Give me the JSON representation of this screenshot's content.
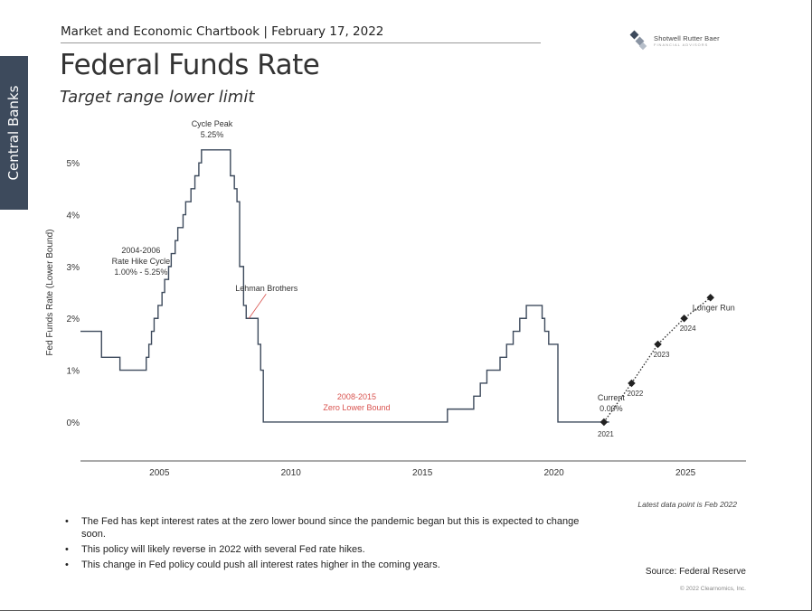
{
  "side_tab": {
    "label": "Central Banks"
  },
  "header": {
    "chartbook": "Market and Economic Chartbook | February 17, 2022",
    "logo_text": "Shotwell Rutter Baer",
    "logo_subtext": "FINANCIAL  ADVISORS"
  },
  "title": "Federal Funds Rate",
  "subtitle": "Target range lower limit",
  "chart_data": {
    "type": "line",
    "ylabel": "Fed Funds Rate (Lower Bound)",
    "xlabel": "",
    "xlim": [
      2002.0,
      2027.3
    ],
    "ylim": [
      -0.75,
      5.7
    ],
    "x_ticks": [
      2005,
      2010,
      2015,
      2020,
      2025
    ],
    "y_ticks": [
      {
        "value": 0,
        "label": "0%"
      },
      {
        "value": 1,
        "label": "1%"
      },
      {
        "value": 2,
        "label": "2%"
      },
      {
        "value": 3,
        "label": "3%"
      },
      {
        "value": 4,
        "label": "4%"
      },
      {
        "value": 5,
        "label": "5%"
      }
    ],
    "grid": false,
    "series": [
      {
        "style": "step",
        "color": "#3d4a5c",
        "points": [
          [
            2002.0,
            1.75
          ],
          [
            2002.8,
            1.25
          ],
          [
            2003.5,
            1.0
          ],
          [
            2004.5,
            1.25
          ],
          [
            2004.6,
            1.5
          ],
          [
            2004.7,
            1.75
          ],
          [
            2004.8,
            2.0
          ],
          [
            2004.95,
            2.25
          ],
          [
            2005.1,
            2.5
          ],
          [
            2005.2,
            2.75
          ],
          [
            2005.35,
            3.0
          ],
          [
            2005.45,
            3.25
          ],
          [
            2005.6,
            3.5
          ],
          [
            2005.7,
            3.75
          ],
          [
            2005.9,
            4.0
          ],
          [
            2006.0,
            4.25
          ],
          [
            2006.2,
            4.5
          ],
          [
            2006.35,
            4.75
          ],
          [
            2006.5,
            5.0
          ],
          [
            2006.6,
            5.25
          ],
          [
            2007.7,
            4.75
          ],
          [
            2007.85,
            4.5
          ],
          [
            2007.95,
            4.25
          ],
          [
            2008.05,
            3.0
          ],
          [
            2008.2,
            2.25
          ],
          [
            2008.3,
            2.0
          ],
          [
            2008.75,
            1.5
          ],
          [
            2008.85,
            1.0
          ],
          [
            2008.95,
            0.0
          ],
          [
            2015.95,
            0.25
          ],
          [
            2016.95,
            0.5
          ],
          [
            2017.2,
            0.75
          ],
          [
            2017.45,
            1.0
          ],
          [
            2017.95,
            1.25
          ],
          [
            2018.2,
            1.5
          ],
          [
            2018.45,
            1.75
          ],
          [
            2018.7,
            2.0
          ],
          [
            2018.95,
            2.25
          ],
          [
            2019.55,
            2.0
          ],
          [
            2019.65,
            1.75
          ],
          [
            2019.8,
            1.5
          ],
          [
            2020.15,
            0.0
          ],
          [
            2022.1,
            0.0
          ]
        ]
      },
      {
        "style": "dotted-projection",
        "color": "#333333",
        "points": [
          [
            2021.9,
            0.0,
            "2021"
          ],
          [
            2022.95,
            0.75,
            "2022"
          ],
          [
            2023.95,
            1.5,
            "2023"
          ],
          [
            2024.95,
            2.0,
            "2024"
          ],
          [
            2025.95,
            2.4,
            ""
          ]
        ]
      }
    ],
    "annotations": [
      {
        "lines": [
          "Cycle Peak",
          "5.25%"
        ],
        "x": 2007.0,
        "y": 5.25,
        "color": "#333333"
      },
      {
        "lines": [
          "2004-2006",
          "Rate Hike Cycle",
          "1.00% - 5.25%"
        ],
        "x": 2004.3,
        "y": 3.0,
        "color": "#333333"
      },
      {
        "lines": [
          "Lehman Brothers"
        ],
        "x": 2008.3,
        "y": 2.0,
        "color": "#333333",
        "pointer": true
      },
      {
        "lines": [
          "2008-2015",
          "Zero Lower Bound"
        ],
        "x": 2012.5,
        "y": 0.0,
        "color": "#d9534f"
      },
      {
        "lines": [
          "Current",
          "0.00%"
        ],
        "x": 2021.9,
        "y": 0.0,
        "color": "#333333"
      },
      {
        "lines": [
          "Longer Run"
        ],
        "x": 2025.95,
        "y": 2.4,
        "color": "#333333"
      }
    ]
  },
  "footnote": "Latest data point is Feb 2022",
  "bullets": [
    "The Fed has kept interest rates at the zero lower bound since the pandemic began but this is expected to change soon.",
    "This policy will likely reverse in 2022 with several Fed rate hikes.",
    "This change in Fed policy could push all interest rates higher in the coming years."
  ],
  "source": "Source: Federal Reserve",
  "copyright": "© 2022 Clearnomics, Inc.",
  "colors": {
    "side_tab": "#3d4a5c",
    "line": "#3d4a5c",
    "zero_bound_label": "#d9534f"
  }
}
